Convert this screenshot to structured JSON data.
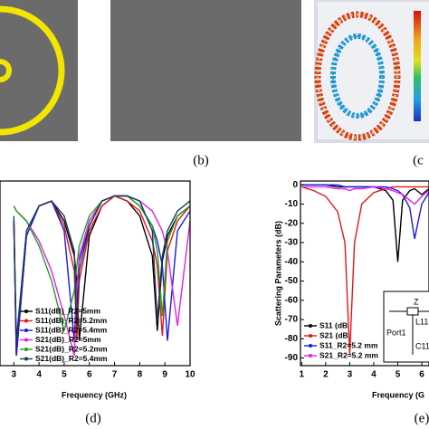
{
  "labels": {
    "b": "(b)",
    "c": "(c",
    "d": "(d)",
    "e": "(e)"
  },
  "inset": {
    "z": "Z",
    "l": "L11",
    "port": "Port1",
    "c": "C11"
  },
  "chart_data": [
    {
      "type": "line",
      "xlabel": "Frequency (GHz)",
      "x": [
        3,
        3.1,
        3.5,
        4,
        4.5,
        5,
        5.4,
        5.5,
        5.6,
        6,
        6.5,
        7,
        7.5,
        8,
        8.5,
        8.7,
        8.9,
        9.1,
        9.5,
        10
      ],
      "xlim": [
        2.45,
        10
      ],
      "xticks": [
        3,
        4,
        5,
        6,
        7,
        8,
        9,
        10
      ],
      "ylim": [
        -35,
        2
      ],
      "series": [
        {
          "name": "S11(dB)_R2=5mm",
          "color": "#000000",
          "values": [
            -6,
            -33,
            -9,
            -3,
            -2,
            -6,
            -13,
            -18,
            -30,
            -9,
            -3,
            -1,
            -2,
            -5,
            -13,
            -28,
            -14,
            -9,
            -5,
            -3
          ]
        },
        {
          "name": "S11(dB)_R2=5.2mm",
          "color": "#e8141b",
          "values": [
            -6,
            -33,
            -9,
            -3,
            -2,
            -7,
            -16,
            -30,
            -18,
            -8,
            -3,
            -1,
            -2,
            -4,
            -10,
            -15,
            -29,
            -12,
            -6,
            -3
          ]
        },
        {
          "name": "S11(dB)_R2=5.4mm",
          "color": "#1a1ae6",
          "values": [
            -6,
            -33,
            -9,
            -3,
            -2,
            -8,
            -30,
            -19,
            -14,
            -7,
            -2,
            -1,
            -1,
            -3,
            -7,
            -10,
            -15,
            -30,
            -8,
            -4
          ]
        },
        {
          "name": "S21(dB)_R2=5mm",
          "color": "#e61ee6",
          "values": [
            -3,
            -4,
            -6,
            -10,
            -16,
            -25,
            -33,
            -20,
            -13,
            -6,
            -2,
            -1,
            -1,
            -2,
            -4,
            -6,
            -8,
            -12,
            -27,
            -6
          ]
        },
        {
          "name": "S21(dB)_R2=5.2mm",
          "color": "#1ea01e",
          "values": [
            -3,
            -4,
            -6,
            -11,
            -18,
            -28,
            -20,
            -15,
            -11,
            -5,
            -2,
            -1,
            -1,
            -3,
            -7,
            -12,
            -25,
            -10,
            -5,
            -3
          ]
        },
        {
          "name": "S21(dB)_R2=5.4mm",
          "color": "#1a3a5a",
          "values": [
            -5,
            -30,
            -8,
            -3,
            -2,
            -5,
            -12,
            -27,
            -16,
            -7,
            -2,
            -1,
            -1,
            -2,
            -8,
            -26,
            -13,
            -8,
            -4,
            -2
          ]
        }
      ]
    },
    {
      "type": "line",
      "xlabel": "Frequency (G",
      "ylabel": "Scattering Parameters (dB)",
      "x": [
        1,
        1.5,
        2,
        2.5,
        2.8,
        3,
        3.2,
        3.5,
        4,
        4.5,
        4.8,
        5,
        5.2,
        5.5,
        5.7,
        6,
        6.3
      ],
      "xlim": [
        0.95,
        6.3
      ],
      "xticks": [
        1,
        2,
        3,
        4,
        5,
        6
      ],
      "ylim": [
        -94,
        2
      ],
      "yticks": [
        0,
        -10,
        -20,
        -30,
        -40,
        -50,
        -60,
        -70,
        -80,
        -90
      ],
      "series": [
        {
          "name": "S11 (dB",
          "color": "#000000",
          "values": [
            0,
            0,
            0,
            -1,
            -1,
            -1,
            -1,
            -1,
            -1,
            -3,
            -8,
            -40,
            -8,
            -3,
            -2,
            -5,
            -2
          ]
        },
        {
          "name": "S21 (dB",
          "color": "#e8141b",
          "values": [
            -1,
            -3,
            -6,
            -14,
            -30,
            -88,
            -30,
            -10,
            -4,
            -2,
            -1,
            -1,
            -1,
            -1,
            -1,
            -1,
            -1
          ]
        },
        {
          "name": "S11_R2=5.2 mm",
          "color": "#1a1ae6",
          "values": [
            0,
            0,
            0,
            0,
            -1,
            -1,
            -1,
            -1,
            -1,
            -1,
            -2,
            -3,
            -5,
            -12,
            -28,
            -10,
            -4
          ]
        },
        {
          "name": "S21_R2=5.2 mm",
          "color": "#e61ee6",
          "values": [
            -1,
            -1,
            -1,
            -2,
            -2,
            -3,
            -2,
            -2,
            -1,
            -2,
            -3,
            -4,
            -5,
            -8,
            -10,
            -6,
            -3
          ]
        }
      ]
    }
  ]
}
